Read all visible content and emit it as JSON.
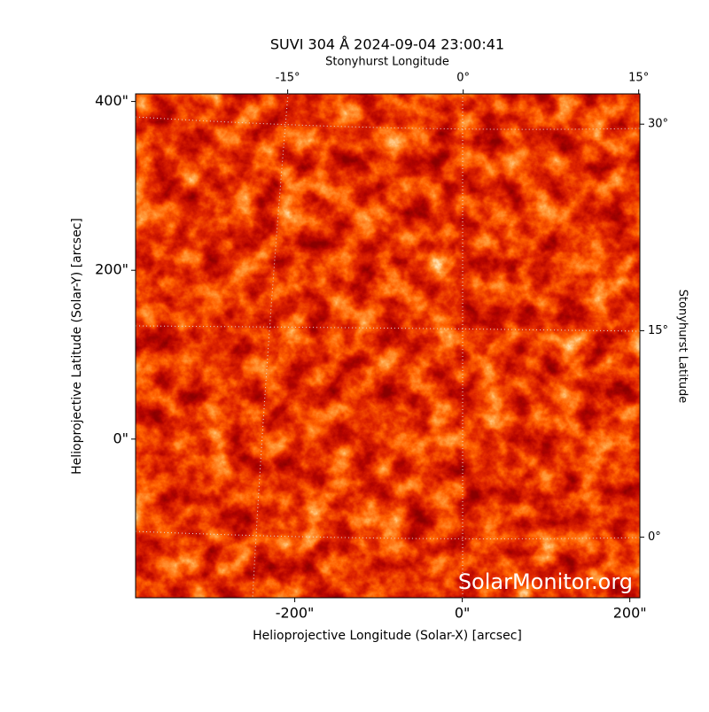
{
  "chart_data": {
    "type": "image",
    "title": "SUVI 304 Å 2024-09-04 23:00:41",
    "xlabel": "Helioprojective Longitude (Solar-X) [arcsec]",
    "ylabel": "Helioprojective Latitude (Solar-Y) [arcsec]",
    "x2label": "Stonyhurst Longitude",
    "y2label": "Stonyhurst Latitude",
    "xlim": [
      -390,
      212
    ],
    "ylim": [
      -188,
      409
    ],
    "xticks": [
      {
        "value": -200,
        "label": "-200\""
      },
      {
        "value": 0,
        "label": "0\""
      },
      {
        "value": 200,
        "label": "200\""
      }
    ],
    "yticks": [
      {
        "value": 0,
        "label": "0\""
      },
      {
        "value": 200,
        "label": "200\""
      },
      {
        "value": 400,
        "label": "400\""
      }
    ],
    "x2lim": [
      -28,
      15.1
    ],
    "x2ticks": [
      {
        "value": -15,
        "label": "-15°"
      },
      {
        "value": 0,
        "label": "0°"
      },
      {
        "value": 15,
        "label": "15°"
      }
    ],
    "y2lim": [
      -4.4,
      32.2
    ],
    "y2ticks": [
      {
        "value": 0,
        "label": "0°"
      },
      {
        "value": 15,
        "label": "15°"
      },
      {
        "value": 30,
        "label": "30°"
      }
    ],
    "watermark": "SolarMonitor.org"
  }
}
